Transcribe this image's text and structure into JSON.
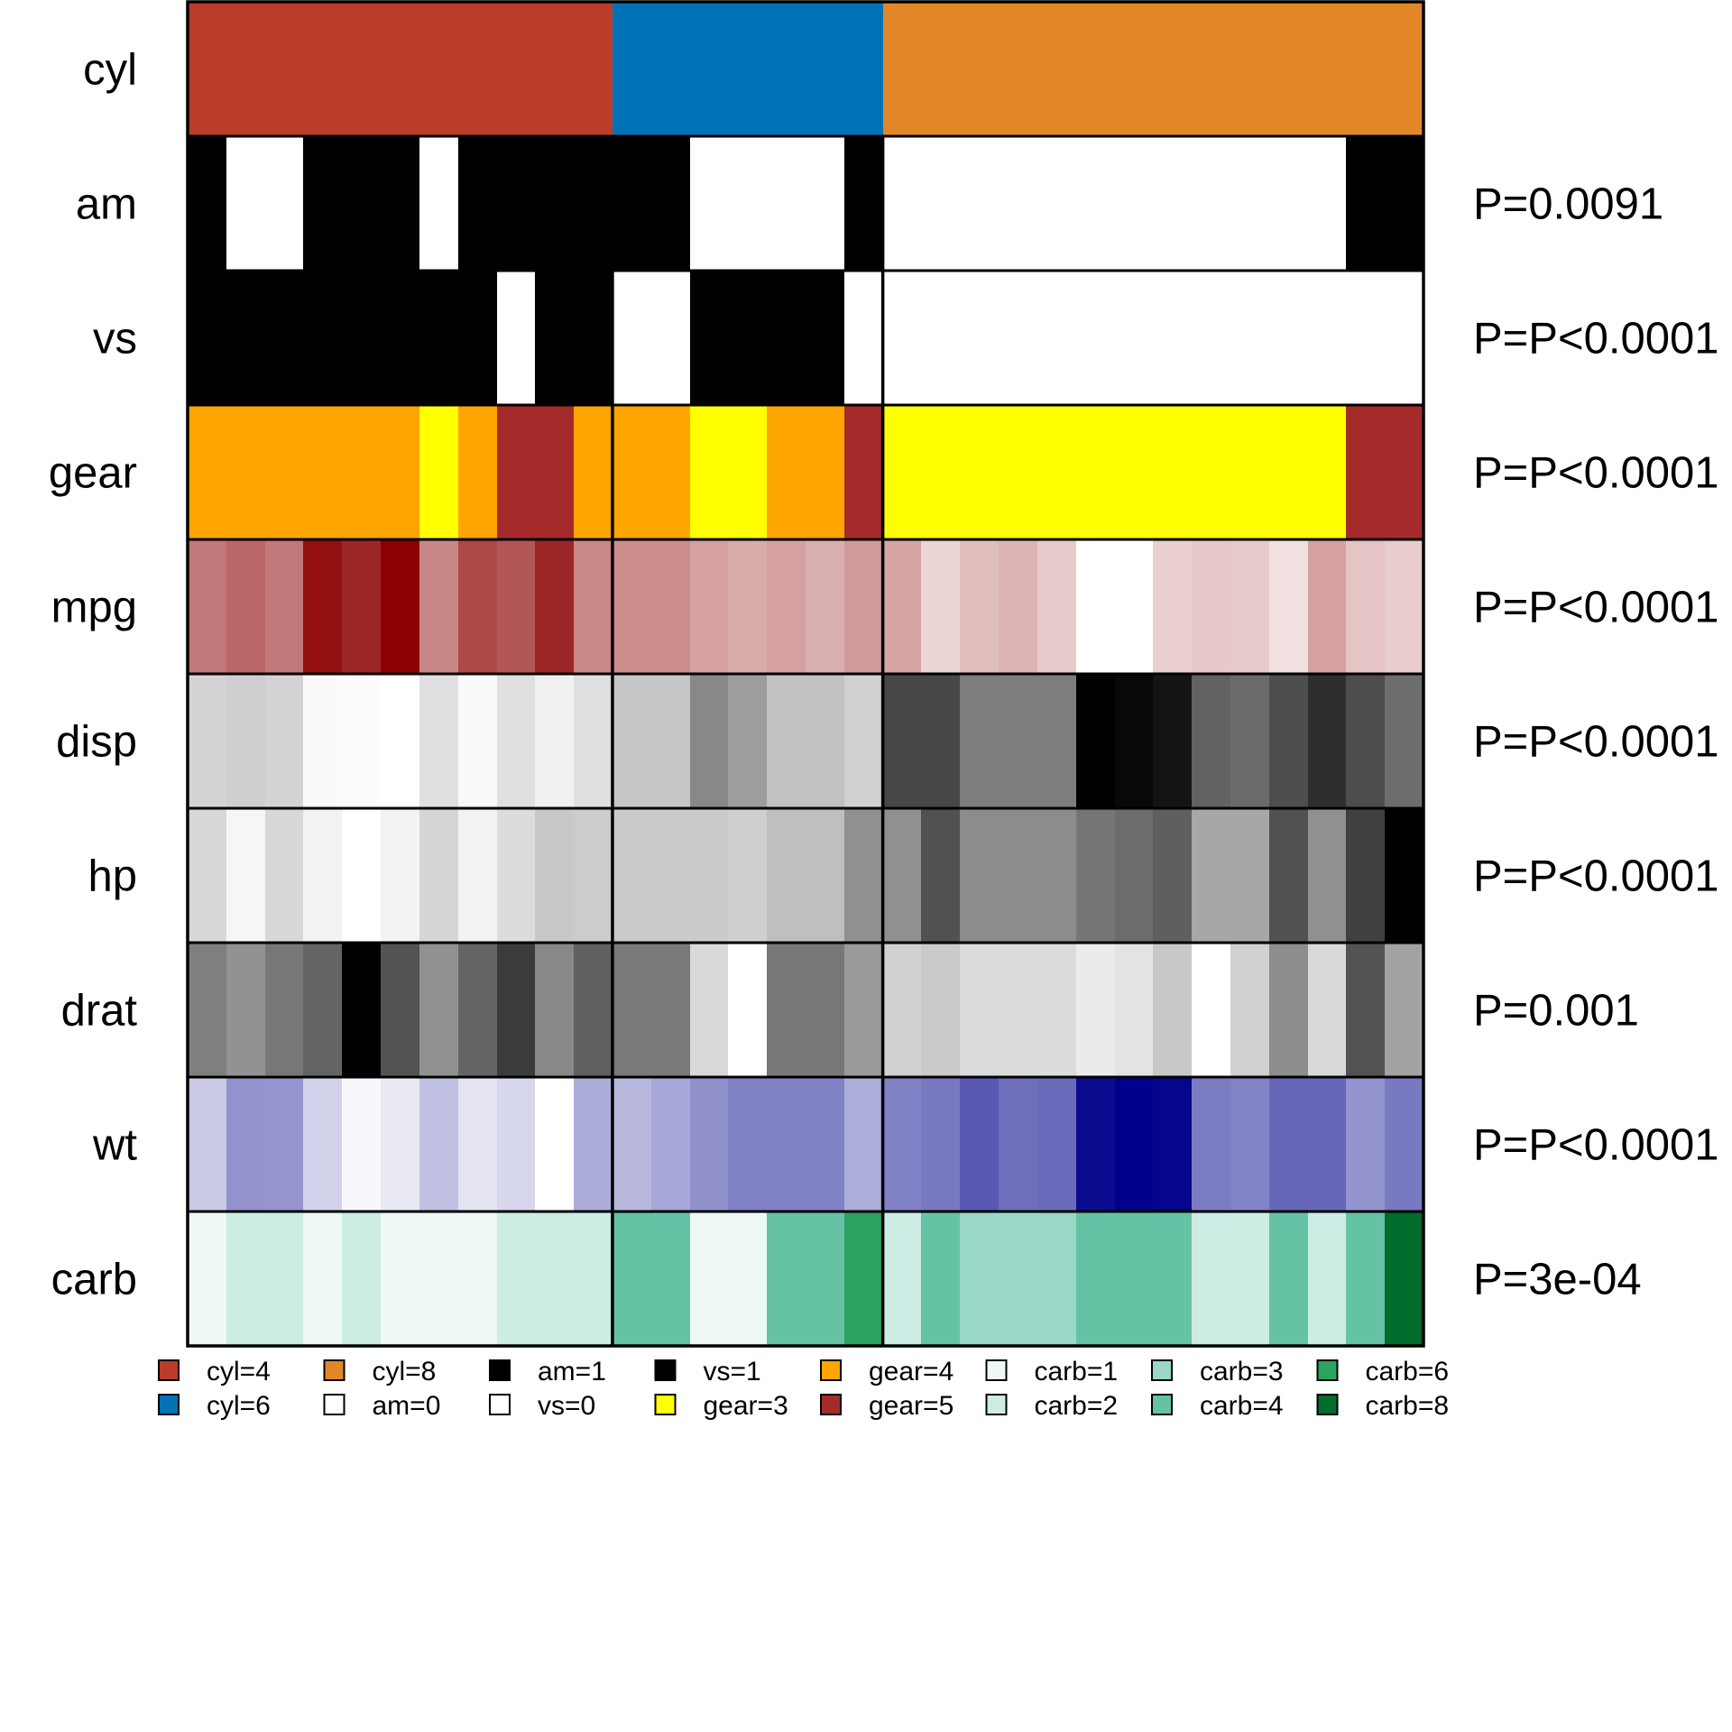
{
  "chart_data": {
    "type": "heatmap",
    "title": "",
    "rows": [
      {
        "name": "cyl",
        "kind": "categorical",
        "pvalue": "",
        "values": [
          "4",
          "4",
          "4",
          "4",
          "4",
          "4",
          "4",
          "4",
          "4",
          "4",
          "4",
          "6",
          "6",
          "6",
          "6",
          "6",
          "6",
          "6",
          "8",
          "8",
          "8",
          "8",
          "8",
          "8",
          "8",
          "8",
          "8",
          "8",
          "8",
          "8",
          "8",
          "8"
        ]
      },
      {
        "name": "am",
        "kind": "categorical",
        "pvalue": "P=0.0091",
        "values": [
          "1",
          "0",
          "0",
          "1",
          "1",
          "1",
          "0",
          "1",
          "1",
          "1",
          "1",
          "1",
          "1",
          "0",
          "0",
          "0",
          "0",
          "1",
          "0",
          "0",
          "0",
          "0",
          "0",
          "0",
          "0",
          "0",
          "0",
          "0",
          "0",
          "0",
          "1",
          "1"
        ]
      },
      {
        "name": "vs",
        "kind": "categorical",
        "pvalue": "P=P<0.0001",
        "values": [
          "1",
          "1",
          "1",
          "1",
          "1",
          "1",
          "1",
          "1",
          "0",
          "1",
          "1",
          "0",
          "0",
          "1",
          "1",
          "1",
          "1",
          "0",
          "0",
          "0",
          "0",
          "0",
          "0",
          "0",
          "0",
          "0",
          "0",
          "0",
          "0",
          "0",
          "0",
          "0"
        ]
      },
      {
        "name": "gear",
        "kind": "categorical",
        "pvalue": "P=P<0.0001",
        "values": [
          "4",
          "4",
          "4",
          "4",
          "4",
          "4",
          "3",
          "4",
          "5",
          "5",
          "4",
          "4",
          "4",
          "3",
          "3",
          "4",
          "4",
          "5",
          "3",
          "3",
          "3",
          "3",
          "3",
          "3",
          "3",
          "3",
          "3",
          "3",
          "3",
          "3",
          "5",
          "5"
        ]
      },
      {
        "name": "mpg",
        "kind": "continuous",
        "color": "#8b0000",
        "pvalue": "P=P<0.0001",
        "values": [
          22.8,
          24.4,
          22.8,
          32.4,
          30.4,
          33.9,
          21.5,
          27.3,
          26.0,
          30.4,
          21.4,
          21.0,
          21.0,
          19.2,
          18.1,
          19.2,
          17.8,
          19.7,
          18.7,
          14.3,
          16.4,
          17.3,
          15.2,
          10.4,
          10.4,
          14.7,
          15.5,
          15.2,
          13.3,
          19.2,
          15.8,
          15.0
        ],
        "range": [
          10.4,
          33.9
        ]
      },
      {
        "name": "disp",
        "kind": "continuous",
        "color": "#000000",
        "pvalue": "P=P<0.0001",
        "values": [
          140.8,
          146.7,
          140.8,
          78.7,
          75.7,
          71.1,
          120.1,
          79.0,
          120.3,
          95.1,
          121.0,
          160.0,
          160.0,
          258.0,
          225.0,
          167.6,
          167.6,
          145.0,
          360.0,
          360.0,
          275.8,
          275.8,
          275.8,
          472.0,
          460.0,
          440.0,
          318.0,
          304.0,
          350.0,
          400.0,
          351.0,
          301.0
        ],
        "range": [
          71.1,
          472.0
        ]
      },
      {
        "name": "hp",
        "kind": "continuous",
        "color": "#000000",
        "pvalue": "P=P<0.0001",
        "values": [
          95,
          62,
          95,
          66,
          52,
          65,
          97,
          66,
          91,
          113,
          109,
          110,
          110,
          110,
          105,
          123,
          123,
          175,
          175,
          245,
          180,
          180,
          180,
          205,
          215,
          230,
          150,
          150,
          245,
          175,
          264,
          335
        ],
        "range": [
          52,
          335
        ]
      },
      {
        "name": "drat",
        "kind": "continuous",
        "color": "#000000",
        "pvalue": "P=0.001",
        "values": [
          3.85,
          3.69,
          3.92,
          4.08,
          4.93,
          4.22,
          3.7,
          4.08,
          4.43,
          3.77,
          4.11,
          3.9,
          3.9,
          3.08,
          2.76,
          3.92,
          3.92,
          3.62,
          3.15,
          3.21,
          3.07,
          3.07,
          3.07,
          2.93,
          3.0,
          3.23,
          2.76,
          3.15,
          3.73,
          3.08,
          4.22,
          3.54
        ],
        "range": [
          2.76,
          4.93
        ]
      },
      {
        "name": "wt",
        "kind": "continuous",
        "color": "#00008b",
        "pvalue": "P=P<0.0001",
        "values": [
          2.32,
          3.19,
          3.15,
          2.2,
          1.615,
          1.835,
          2.465,
          1.935,
          2.14,
          1.513,
          2.78,
          2.62,
          2.875,
          3.215,
          3.46,
          3.44,
          3.44,
          2.77,
          3.44,
          3.57,
          4.07,
          3.73,
          3.78,
          5.25,
          5.424,
          5.345,
          3.52,
          3.435,
          3.84,
          3.845,
          3.17,
          3.57
        ],
        "range": [
          1.513,
          5.424
        ]
      },
      {
        "name": "carb",
        "kind": "categorical",
        "pvalue": "P=3e-04",
        "values": [
          "1",
          "2",
          "2",
          "1",
          "2",
          "1",
          "1",
          "1",
          "2",
          "2",
          "2",
          "4",
          "4",
          "1",
          "1",
          "4",
          "4",
          "6",
          "2",
          "4",
          "3",
          "3",
          "3",
          "4",
          "4",
          "4",
          "2",
          "2",
          "4",
          "2",
          "4",
          "8"
        ]
      }
    ],
    "groups": [
      {
        "name": "cyl=4",
        "count": 11
      },
      {
        "name": "cyl=6",
        "count": 7
      },
      {
        "name": "cyl=8",
        "count": 14
      }
    ],
    "category_colors": {
      "cyl": {
        "4": "#bc3c29",
        "6": "#0072b5",
        "8": "#e18727"
      },
      "am": {
        "0": "#ffffff",
        "1": "#000000"
      },
      "vs": {
        "0": "#ffffff",
        "1": "#000000"
      },
      "gear": {
        "3": "#ffff00",
        "4": "#ffa500",
        "5": "#a52a2a"
      },
      "carb": {
        "1": "#edf8f7",
        "2": "#ccece4",
        "3": "#99d8c8",
        "4": "#66c2a4",
        "6": "#2ca25f",
        "8": "#006d2c"
      }
    },
    "legend": {
      "placement": "bottom",
      "items": [
        {
          "label": "cyl=4",
          "color": "#bc3c29"
        },
        {
          "label": "cyl=6",
          "color": "#0072b5"
        },
        {
          "label": "cyl=8",
          "color": "#e18727"
        },
        {
          "label": "am=0",
          "color": "#ffffff"
        },
        {
          "label": "am=1",
          "color": "#000000"
        },
        {
          "label": "vs=0",
          "color": "#ffffff"
        },
        {
          "label": "vs=1",
          "color": "#000000"
        },
        {
          "label": "gear=3",
          "color": "#ffff00"
        },
        {
          "label": "gear=4",
          "color": "#ffa500"
        },
        {
          "label": "gear=5",
          "color": "#a52a2a"
        },
        {
          "label": "carb=1",
          "color": "#edf8f7"
        },
        {
          "label": "carb=2",
          "color": "#ccece4"
        },
        {
          "label": "carb=3",
          "color": "#99d8c8"
        },
        {
          "label": "carb=4",
          "color": "#66c2a4"
        },
        {
          "label": "carb=6",
          "color": "#2ca25f"
        },
        {
          "label": "carb=8",
          "color": "#006d2c"
        }
      ]
    }
  }
}
